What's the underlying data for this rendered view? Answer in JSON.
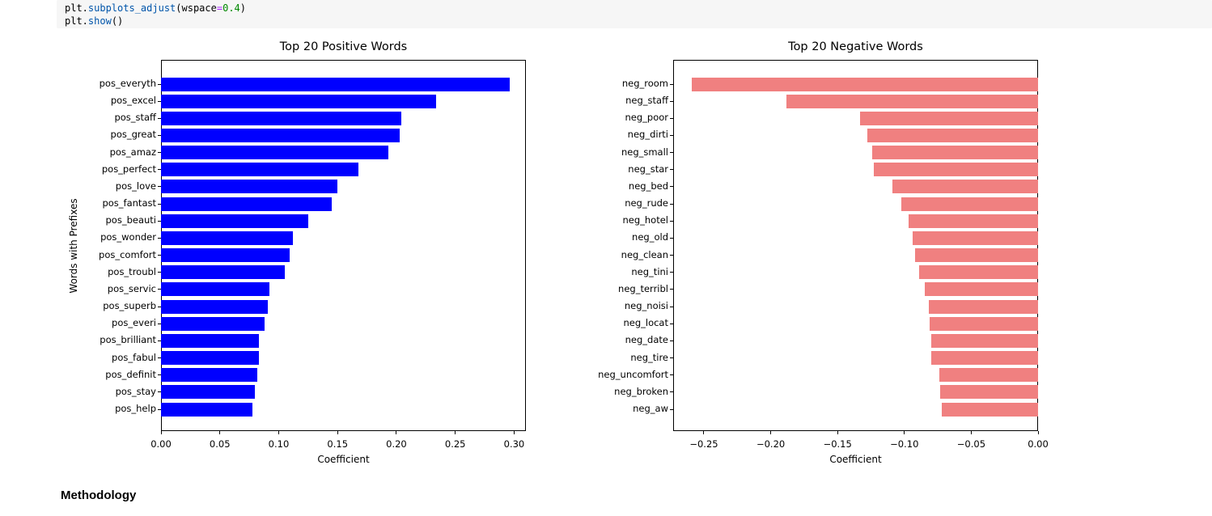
{
  "code_cell": {
    "lines": [
      [
        {
          "text": "plt.",
          "style": "plain"
        },
        {
          "text": "subplots_adjust",
          "style": "property"
        },
        {
          "text": "(wspace",
          "style": "plain"
        },
        {
          "text": "=",
          "style": "operator"
        },
        {
          "text": "0.4",
          "style": "number"
        },
        {
          "text": ")",
          "style": "plain"
        }
      ],
      [
        {
          "text": "plt.",
          "style": "plain"
        },
        {
          "text": "show",
          "style": "property"
        },
        {
          "text": "()",
          "style": "plain"
        }
      ]
    ]
  },
  "methodology_heading": "Methodology",
  "colors": {
    "positive_bar": "#0000ff",
    "negative_bar": "#f08080",
    "spine": "#000000",
    "code_background": "#f6f6f6"
  },
  "chart_data": [
    {
      "type": "bar",
      "orientation": "horizontal",
      "title": "Top 20 Positive Words",
      "xlabel": "Coefficient",
      "ylabel": "Words with Prefixes",
      "bar_color": "#0000ff",
      "categories": [
        "pos_everyth",
        "pos_excel",
        "pos_staff",
        "pos_great",
        "pos_amaz",
        "pos_perfect",
        "pos_love",
        "pos_fantast",
        "pos_beauti",
        "pos_wonder",
        "pos_comfort",
        "pos_troubl",
        "pos_servic",
        "pos_superb",
        "pos_everi",
        "pos_brilliant",
        "pos_fabul",
        "pos_definit",
        "pos_stay",
        "pos_help"
      ],
      "values": [
        0.296,
        0.234,
        0.204,
        0.203,
        0.193,
        0.168,
        0.15,
        0.145,
        0.125,
        0.112,
        0.109,
        0.105,
        0.092,
        0.091,
        0.088,
        0.083,
        0.083,
        0.082,
        0.08,
        0.078
      ],
      "xlim": [
        0,
        0.31
      ],
      "xticks": [
        0.0,
        0.05,
        0.1,
        0.15,
        0.2,
        0.25,
        0.3
      ],
      "xtick_labels": [
        "0.00",
        "0.05",
        "0.10",
        "0.15",
        "0.20",
        "0.25",
        "0.30"
      ],
      "grid": false,
      "legend": null
    },
    {
      "type": "bar",
      "orientation": "horizontal",
      "title": "Top 20 Negative Words",
      "xlabel": "Coefficient",
      "ylabel": "",
      "bar_color": "#f08080",
      "categories": [
        "neg_room",
        "neg_staff",
        "neg_poor",
        "neg_dirti",
        "neg_small",
        "neg_star",
        "neg_bed",
        "neg_rude",
        "neg_hotel",
        "neg_old",
        "neg_clean",
        "neg_tini",
        "neg_terribl",
        "neg_noisi",
        "neg_locat",
        "neg_date",
        "neg_tire",
        "neg_uncomfort",
        "neg_broken",
        "neg_aw"
      ],
      "values": [
        -0.259,
        -0.188,
        -0.133,
        -0.128,
        -0.124,
        -0.123,
        -0.109,
        -0.102,
        -0.097,
        -0.094,
        -0.092,
        -0.089,
        -0.085,
        -0.082,
        -0.081,
        -0.08,
        -0.08,
        -0.074,
        -0.073,
        -0.072
      ],
      "xlim": [
        -0.273,
        0
      ],
      "xticks": [
        -0.25,
        -0.2,
        -0.15,
        -0.1,
        -0.05,
        0.0
      ],
      "xtick_labels": [
        "−0.25",
        "−0.20",
        "−0.15",
        "−0.10",
        "−0.05",
        "0.00"
      ],
      "grid": false,
      "legend": null
    }
  ]
}
